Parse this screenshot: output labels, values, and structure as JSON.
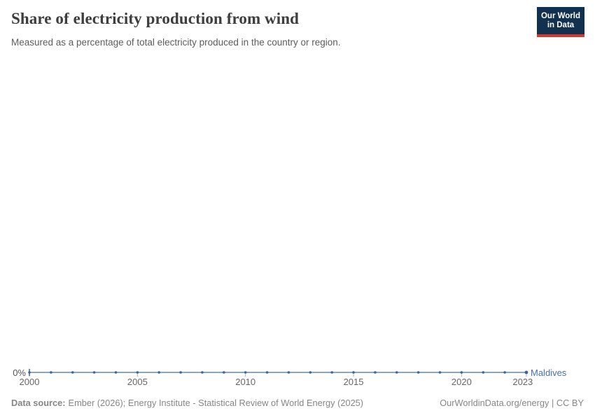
{
  "header": {
    "title": "Share of electricity production from wind",
    "subtitle": "Measured as a percentage of total electricity produced in the country or region.",
    "logo": {
      "line1": "Our World",
      "line2": "in Data"
    }
  },
  "chart_data": {
    "type": "line",
    "title": "Share of electricity production from wind",
    "subtitle": "Measured as a percentage of total electricity produced in the country or region.",
    "x": [
      2000,
      2001,
      2002,
      2003,
      2004,
      2005,
      2006,
      2007,
      2008,
      2009,
      2010,
      2011,
      2012,
      2013,
      2014,
      2015,
      2016,
      2017,
      2018,
      2019,
      2020,
      2021,
      2022,
      2023
    ],
    "series": [
      {
        "name": "Maldives",
        "values": [
          0,
          0,
          0,
          0,
          0,
          0,
          0,
          0,
          0,
          0,
          0,
          0,
          0,
          0,
          0,
          0,
          0,
          0,
          0,
          0,
          0,
          0,
          0,
          0
        ],
        "unit": "%",
        "line_color": "#6787b8",
        "marker_color": "#3f639f",
        "label_color": "#4a6fae"
      }
    ],
    "xlabel": "",
    "ylabel": "",
    "xlim": [
      2000,
      2023
    ],
    "ylim": [
      0,
      100
    ],
    "x_ticks": [
      2000,
      2005,
      2010,
      2015,
      2020,
      2023
    ],
    "x_tick_labels": [
      "2000",
      "2005",
      "2010",
      "2015",
      "2020",
      "2023"
    ],
    "y_tick_labels": [
      "0%"
    ],
    "grid": false,
    "legend_position": "line-end-label"
  },
  "footer": {
    "source_label": "Data source:",
    "source_text": "Ember (2026); Energy Institute - Statistical Review of World Energy (2025)",
    "right_text": "OurWorldinData.org/energy | CC BY"
  },
  "colors": {
    "title": "#3d3d3d",
    "subtitle": "#5c5c5c",
    "axis_text": "#666666",
    "footer_text": "#868686",
    "logo_background": "#12304f",
    "logo_stripe": "#d6382e",
    "tick_mark": "#aab6c6"
  }
}
